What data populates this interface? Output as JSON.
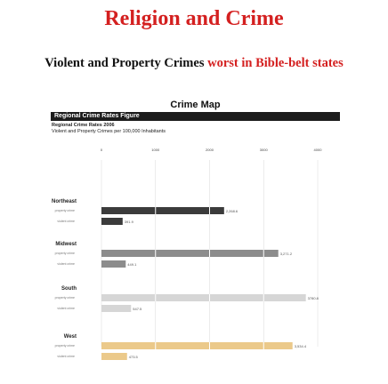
{
  "header": {
    "title": "Religion and Crime",
    "subtitle_plain": "Violent and Property Crimes",
    "subtitle_red": "worst in Bible-belt states"
  },
  "map": {
    "title": "Crime Map",
    "figure_bar": "Regional Crime Rates Figure",
    "rates_title": "Regional Crime Rates 2006",
    "rates_desc": "Violent and Property Crimes per 100,000 Inhabitants"
  },
  "colors": {
    "accent_red": "#d42020",
    "Northeast": "#3b3b3b",
    "Midwest": "#8c8c8c",
    "South": "#d6d6d6",
    "West": "#ebc98a"
  },
  "chart_data": {
    "type": "bar",
    "orientation": "horizontal",
    "xlim": [
      0,
      4000
    ],
    "ticks": [
      "0",
      "1000",
      "2000",
      "3000",
      "4000"
    ],
    "tick_values": [
      0,
      1000,
      2000,
      3000,
      4000
    ],
    "categories": [
      "Northeast",
      "Midwest",
      "South",
      "West"
    ],
    "series": [
      {
        "name": "property crime",
        "values": [
          2268.6,
          3271.2,
          3780.8,
          3534.4
        ],
        "labels": [
          "2,268.6",
          "3,271.2",
          "3780.8",
          "3,534.4"
        ]
      },
      {
        "name": "violent crime",
        "values": [
          391.9,
          449.1,
          547.5,
          473.5
        ],
        "labels": [
          "391.9",
          "449.1",
          "547.5",
          "473.5"
        ]
      }
    ],
    "grid": true
  }
}
